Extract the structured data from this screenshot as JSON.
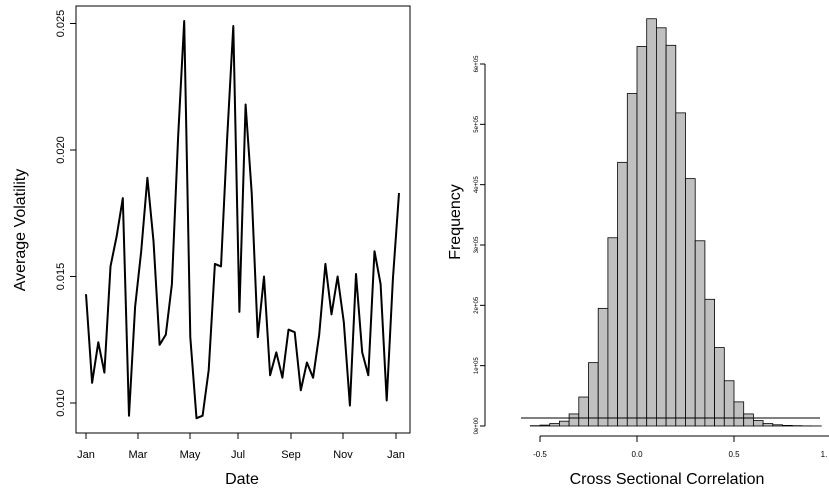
{
  "chart_data": [
    {
      "type": "line",
      "xlabel": "Date",
      "ylabel": "Average Volatility",
      "x_ticks": [
        "Jan",
        "Mar",
        "May",
        "Jul",
        "Sep",
        "Nov",
        "Jan"
      ],
      "y_ticks": [
        "0.010",
        "0.015",
        "0.020",
        "0.025"
      ],
      "ylim": [
        0.0095,
        0.0253
      ],
      "series": [
        {
          "values": [
            0.0143,
            0.0108,
            0.0124,
            0.0112,
            0.0154,
            0.0166,
            0.0181,
            0.0095,
            0.0138,
            0.016,
            0.0189,
            0.0164,
            0.0123,
            0.0127,
            0.0147,
            0.0205,
            0.0251,
            0.0126,
            0.0094,
            0.0095,
            0.0113,
            0.0155,
            0.0154,
            0.0205,
            0.0249,
            0.0136,
            0.0218,
            0.0183,
            0.0126,
            0.015,
            0.0111,
            0.012,
            0.011,
            0.0129,
            0.0128,
            0.0105,
            0.0116,
            0.011,
            0.0127,
            0.0155,
            0.0135,
            0.015,
            0.0132,
            0.0099,
            0.0151,
            0.012,
            0.0111,
            0.016,
            0.0147,
            0.0101,
            0.0149,
            0.0183
          ]
        }
      ]
    },
    {
      "type": "bar",
      "subtype": "histogram",
      "xlabel": "Cross Sectional Correlation",
      "ylabel": "Frequency",
      "x_ticks": [
        "-0.5",
        "0.0",
        "0.5",
        "1."
      ],
      "y_ticks": [
        "0e+00",
        "1e+05",
        "2e+05",
        "3e+05",
        "4e+05",
        "5e+05",
        "6e+05"
      ],
      "bin_width": 0.05,
      "xlim": [
        -0.55,
        1.02
      ],
      "ylim": [
        0,
        680000
      ],
      "bins_start": [
        -0.6,
        -0.55,
        -0.5,
        -0.45,
        -0.4,
        -0.35,
        -0.3,
        -0.25,
        -0.2,
        -0.15,
        -0.1,
        -0.05,
        0.0,
        0.05,
        0.1,
        0.15,
        0.2,
        0.25,
        0.3,
        0.35,
        0.4,
        0.45,
        0.5,
        0.55,
        0.6,
        0.65,
        0.7,
        0.75,
        0.8,
        0.85,
        0.9,
        0.95
      ],
      "values": [
        0,
        500,
        1500,
        4000,
        8000,
        20000,
        48000,
        105000,
        195000,
        312000,
        437000,
        551000,
        629000,
        675000,
        660000,
        631000,
        519000,
        410000,
        307000,
        210000,
        130000,
        75000,
        40000,
        20000,
        9000,
        4000,
        2000,
        1000,
        500,
        200,
        100,
        0
      ],
      "bar_color": "#c0c0c0"
    }
  ]
}
